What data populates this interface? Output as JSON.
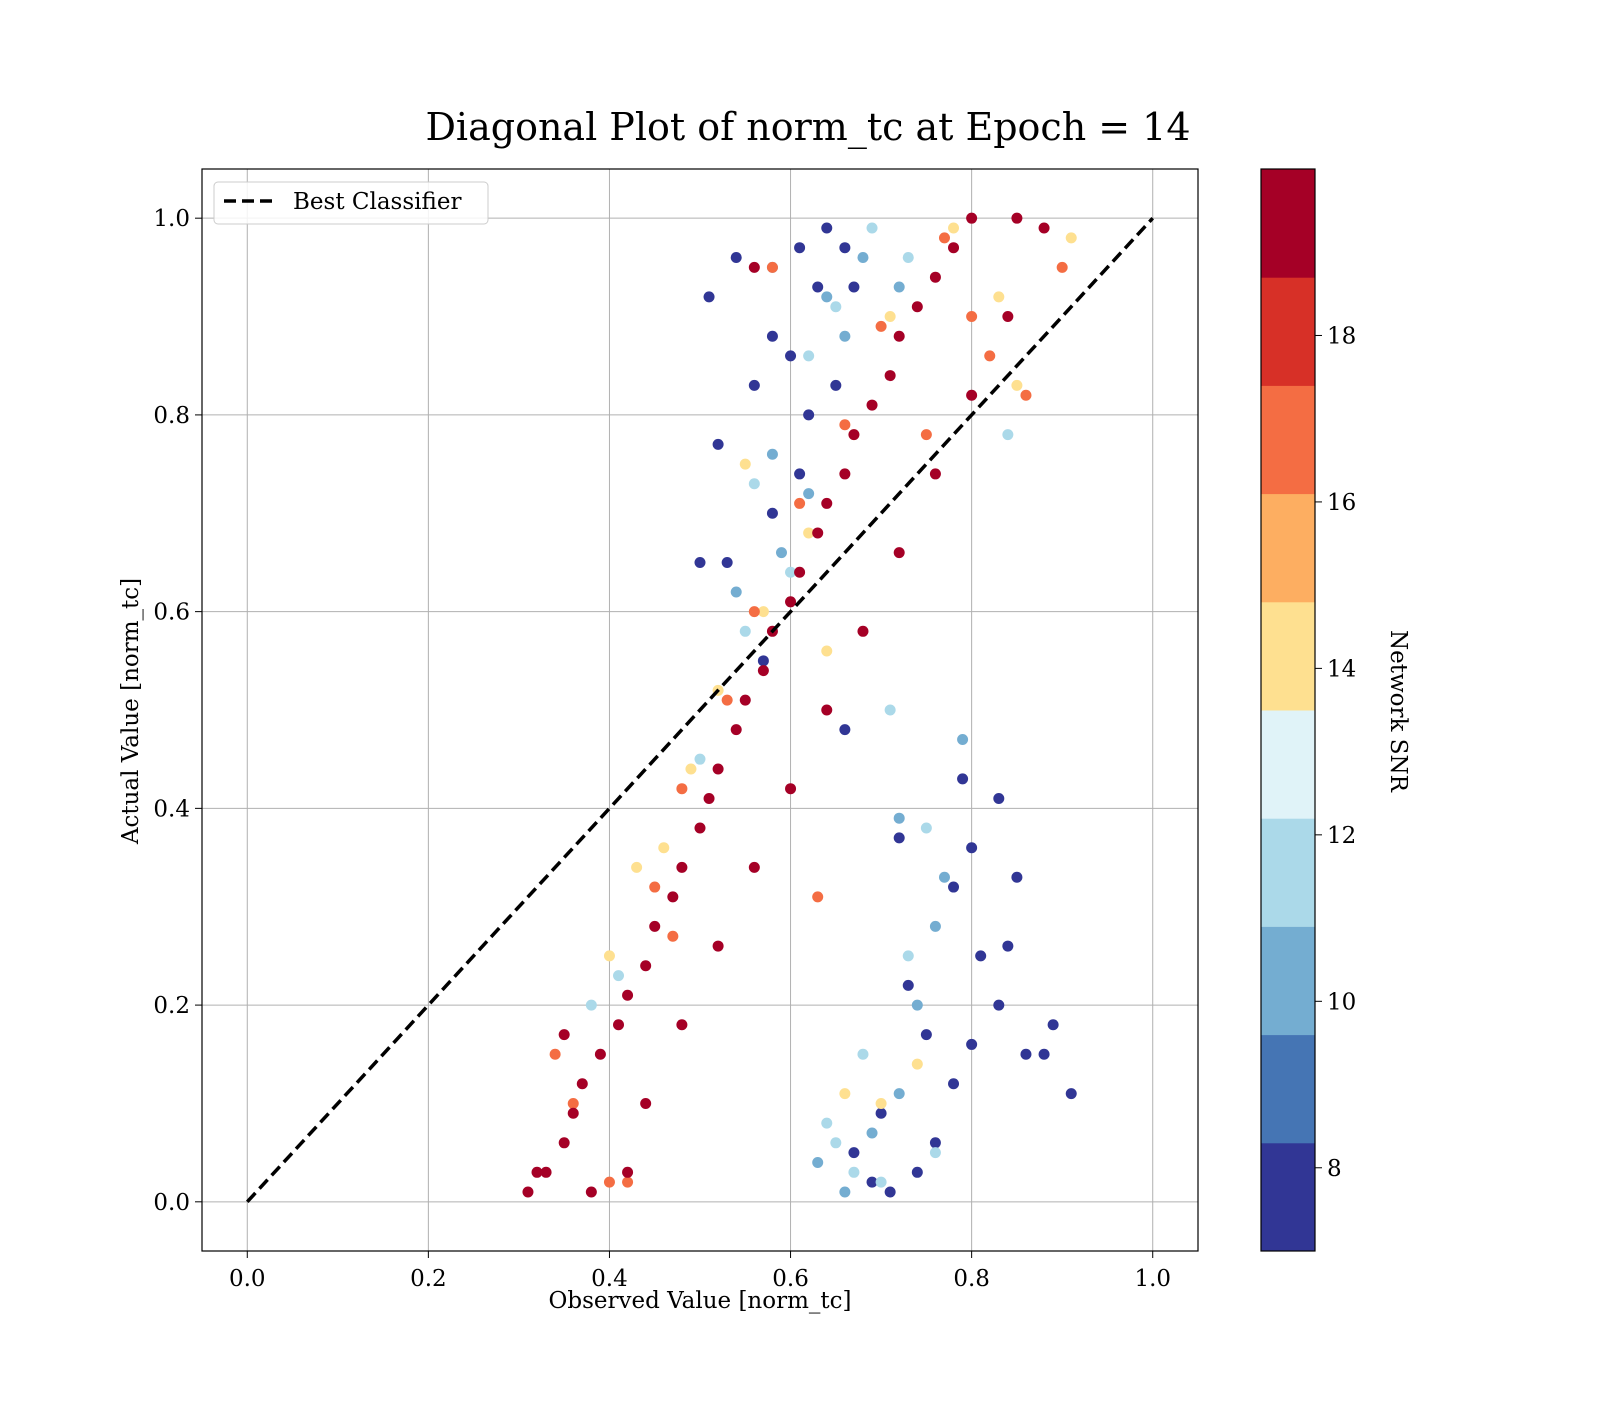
{
  "chart_data": {
    "type": "scatter",
    "title": "Diagonal Plot of norm_tc at Epoch = 14",
    "xlabel": "Observed Value [norm_tc]",
    "ylabel": "Actual Value [norm_tc]",
    "xlim": [
      -0.05,
      1.05
    ],
    "ylim": [
      -0.05,
      1.05
    ],
    "xticks": [
      "0.0",
      "0.2",
      "0.4",
      "0.6",
      "0.8",
      "1.0"
    ],
    "yticks": [
      "0.0",
      "0.2",
      "0.4",
      "0.6",
      "0.8",
      "1.0"
    ],
    "grid": true,
    "legend": {
      "placement": "upper-left",
      "entries": [
        {
          "label": "Best Classifier",
          "style": "dashed",
          "color": "#000000"
        }
      ]
    },
    "reference_line": {
      "label": "Best Classifier",
      "x": [
        0.0,
        1.0
      ],
      "y": [
        0.0,
        1.0
      ]
    },
    "colorbar": {
      "label": "Network SNR",
      "range": [
        7,
        20
      ],
      "ticks": [
        "8",
        "10",
        "12",
        "14",
        "16",
        "18"
      ],
      "tick_values": [
        8,
        10,
        12,
        14,
        16,
        18
      ],
      "colors": [
        "#313695",
        "#4575b4",
        "#74add1",
        "#abd9e9",
        "#e0f3f8",
        "#fee090",
        "#fdae61",
        "#f46d43",
        "#d73027",
        "#a50026"
      ]
    },
    "series": [
      {
        "colormap_bin": "high SNR (>= 19)",
        "color": "#a50026",
        "points": [
          [
            0.31,
            0.01
          ],
          [
            0.33,
            0.03
          ],
          [
            0.35,
            0.06
          ],
          [
            0.36,
            0.09
          ],
          [
            0.37,
            0.12
          ],
          [
            0.39,
            0.15
          ],
          [
            0.41,
            0.18
          ],
          [
            0.42,
            0.21
          ],
          [
            0.44,
            0.24
          ],
          [
            0.45,
            0.28
          ],
          [
            0.47,
            0.31
          ],
          [
            0.48,
            0.34
          ],
          [
            0.5,
            0.38
          ],
          [
            0.51,
            0.41
          ],
          [
            0.52,
            0.44
          ],
          [
            0.54,
            0.48
          ],
          [
            0.55,
            0.51
          ],
          [
            0.57,
            0.54
          ],
          [
            0.58,
            0.58
          ],
          [
            0.6,
            0.61
          ],
          [
            0.61,
            0.64
          ],
          [
            0.63,
            0.68
          ],
          [
            0.64,
            0.71
          ],
          [
            0.66,
            0.74
          ],
          [
            0.67,
            0.78
          ],
          [
            0.69,
            0.81
          ],
          [
            0.71,
            0.84
          ],
          [
            0.72,
            0.88
          ],
          [
            0.74,
            0.91
          ],
          [
            0.76,
            0.94
          ],
          [
            0.78,
            0.97
          ],
          [
            0.8,
            1.0
          ],
          [
            0.85,
            1.0
          ],
          [
            0.88,
            0.99
          ],
          [
            0.84,
            0.9
          ],
          [
            0.8,
            0.82
          ],
          [
            0.76,
            0.74
          ],
          [
            0.72,
            0.66
          ],
          [
            0.68,
            0.58
          ],
          [
            0.64,
            0.5
          ],
          [
            0.6,
            0.42
          ],
          [
            0.56,
            0.34
          ],
          [
            0.52,
            0.26
          ],
          [
            0.48,
            0.18
          ],
          [
            0.44,
            0.1
          ],
          [
            0.42,
            0.03
          ],
          [
            0.38,
            0.01
          ],
          [
            0.35,
            0.17
          ],
          [
            0.32,
            0.03
          ],
          [
            0.56,
            0.95
          ]
        ]
      },
      {
        "colormap_bin": "SNR 15-18",
        "color": "#f46d43",
        "points": [
          [
            0.34,
            0.15
          ],
          [
            0.36,
            0.1
          ],
          [
            0.4,
            0.02
          ],
          [
            0.45,
            0.32
          ],
          [
            0.48,
            0.42
          ],
          [
            0.53,
            0.51
          ],
          [
            0.56,
            0.6
          ],
          [
            0.61,
            0.71
          ],
          [
            0.66,
            0.79
          ],
          [
            0.7,
            0.89
          ],
          [
            0.77,
            0.98
          ],
          [
            0.86,
            0.82
          ],
          [
            0.82,
            0.86
          ],
          [
            0.9,
            0.95
          ],
          [
            0.58,
            0.95
          ],
          [
            0.42,
            0.02
          ],
          [
            0.47,
            0.27
          ],
          [
            0.63,
            0.31
          ],
          [
            0.75,
            0.78
          ],
          [
            0.8,
            0.9
          ]
        ]
      },
      {
        "colormap_bin": "SNR 13-15",
        "color": "#fee090",
        "points": [
          [
            0.4,
            0.25
          ],
          [
            0.43,
            0.34
          ],
          [
            0.49,
            0.44
          ],
          [
            0.52,
            0.52
          ],
          [
            0.57,
            0.6
          ],
          [
            0.62,
            0.68
          ],
          [
            0.67,
            0.78
          ],
          [
            0.71,
            0.9
          ],
          [
            0.78,
            0.99
          ],
          [
            0.85,
            0.83
          ],
          [
            0.91,
            0.98
          ],
          [
            0.55,
            0.75
          ],
          [
            0.66,
            0.11
          ],
          [
            0.7,
            0.1
          ],
          [
            0.74,
            0.14
          ],
          [
            0.83,
            0.92
          ],
          [
            0.46,
            0.36
          ],
          [
            0.64,
            0.56
          ]
        ]
      },
      {
        "colormap_bin": "SNR 11-13",
        "color": "#abd9e9",
        "points": [
          [
            0.38,
            0.2
          ],
          [
            0.41,
            0.23
          ],
          [
            0.5,
            0.45
          ],
          [
            0.55,
            0.58
          ],
          [
            0.6,
            0.64
          ],
          [
            0.65,
            0.06
          ],
          [
            0.67,
            0.03
          ],
          [
            0.7,
            0.02
          ],
          [
            0.73,
            0.25
          ],
          [
            0.75,
            0.38
          ],
          [
            0.71,
            0.5
          ],
          [
            0.62,
            0.86
          ],
          [
            0.65,
            0.91
          ],
          [
            0.69,
            0.99
          ],
          [
            0.73,
            0.96
          ],
          [
            0.56,
            0.73
          ],
          [
            0.84,
            0.78
          ],
          [
            0.64,
            0.08
          ],
          [
            0.68,
            0.15
          ],
          [
            0.76,
            0.05
          ]
        ]
      },
      {
        "colormap_bin": "SNR 9-11",
        "color": "#74add1",
        "points": [
          [
            0.59,
            0.66
          ],
          [
            0.62,
            0.72
          ],
          [
            0.64,
            0.92
          ],
          [
            0.66,
            0.88
          ],
          [
            0.68,
            0.96
          ],
          [
            0.72,
            0.93
          ],
          [
            0.63,
            0.04
          ],
          [
            0.66,
            0.01
          ],
          [
            0.69,
            0.07
          ],
          [
            0.72,
            0.11
          ],
          [
            0.74,
            0.2
          ],
          [
            0.76,
            0.28
          ],
          [
            0.72,
            0.39
          ],
          [
            0.58,
            0.95
          ],
          [
            0.58,
            0.76
          ],
          [
            0.54,
            0.62
          ],
          [
            0.79,
            0.47
          ],
          [
            0.77,
            0.33
          ]
        ]
      },
      {
        "colormap_bin": "low SNR (< 9)",
        "color": "#313695",
        "points": [
          [
            0.64,
            0.99
          ],
          [
            0.66,
            0.97
          ],
          [
            0.67,
            0.93
          ],
          [
            0.54,
            0.96
          ],
          [
            0.51,
            0.92
          ],
          [
            0.56,
            0.83
          ],
          [
            0.6,
            0.86
          ],
          [
            0.62,
            0.8
          ],
          [
            0.52,
            0.77
          ],
          [
            0.5,
            0.65
          ],
          [
            0.53,
            0.65
          ],
          [
            0.58,
            0.7
          ],
          [
            0.61,
            0.74
          ],
          [
            0.63,
            0.93
          ],
          [
            0.67,
            0.05
          ],
          [
            0.71,
            0.01
          ],
          [
            0.74,
            0.03
          ],
          [
            0.76,
            0.06
          ],
          [
            0.78,
            0.12
          ],
          [
            0.8,
            0.16
          ],
          [
            0.83,
            0.2
          ],
          [
            0.81,
            0.25
          ],
          [
            0.78,
            0.32
          ],
          [
            0.8,
            0.36
          ],
          [
            0.83,
            0.41
          ],
          [
            0.79,
            0.43
          ],
          [
            0.85,
            0.33
          ],
          [
            0.84,
            0.26
          ],
          [
            0.86,
            0.15
          ],
          [
            0.89,
            0.18
          ],
          [
            0.91,
            0.11
          ],
          [
            0.88,
            0.15
          ],
          [
            0.75,
            0.17
          ],
          [
            0.73,
            0.22
          ],
          [
            0.7,
            0.09
          ],
          [
            0.69,
            0.02
          ],
          [
            0.58,
            0.88
          ],
          [
            0.57,
            0.55
          ],
          [
            0.66,
            0.48
          ],
          [
            0.72,
            0.37
          ],
          [
            0.61,
            0.97
          ],
          [
            0.65,
            0.83
          ]
        ]
      }
    ]
  }
}
